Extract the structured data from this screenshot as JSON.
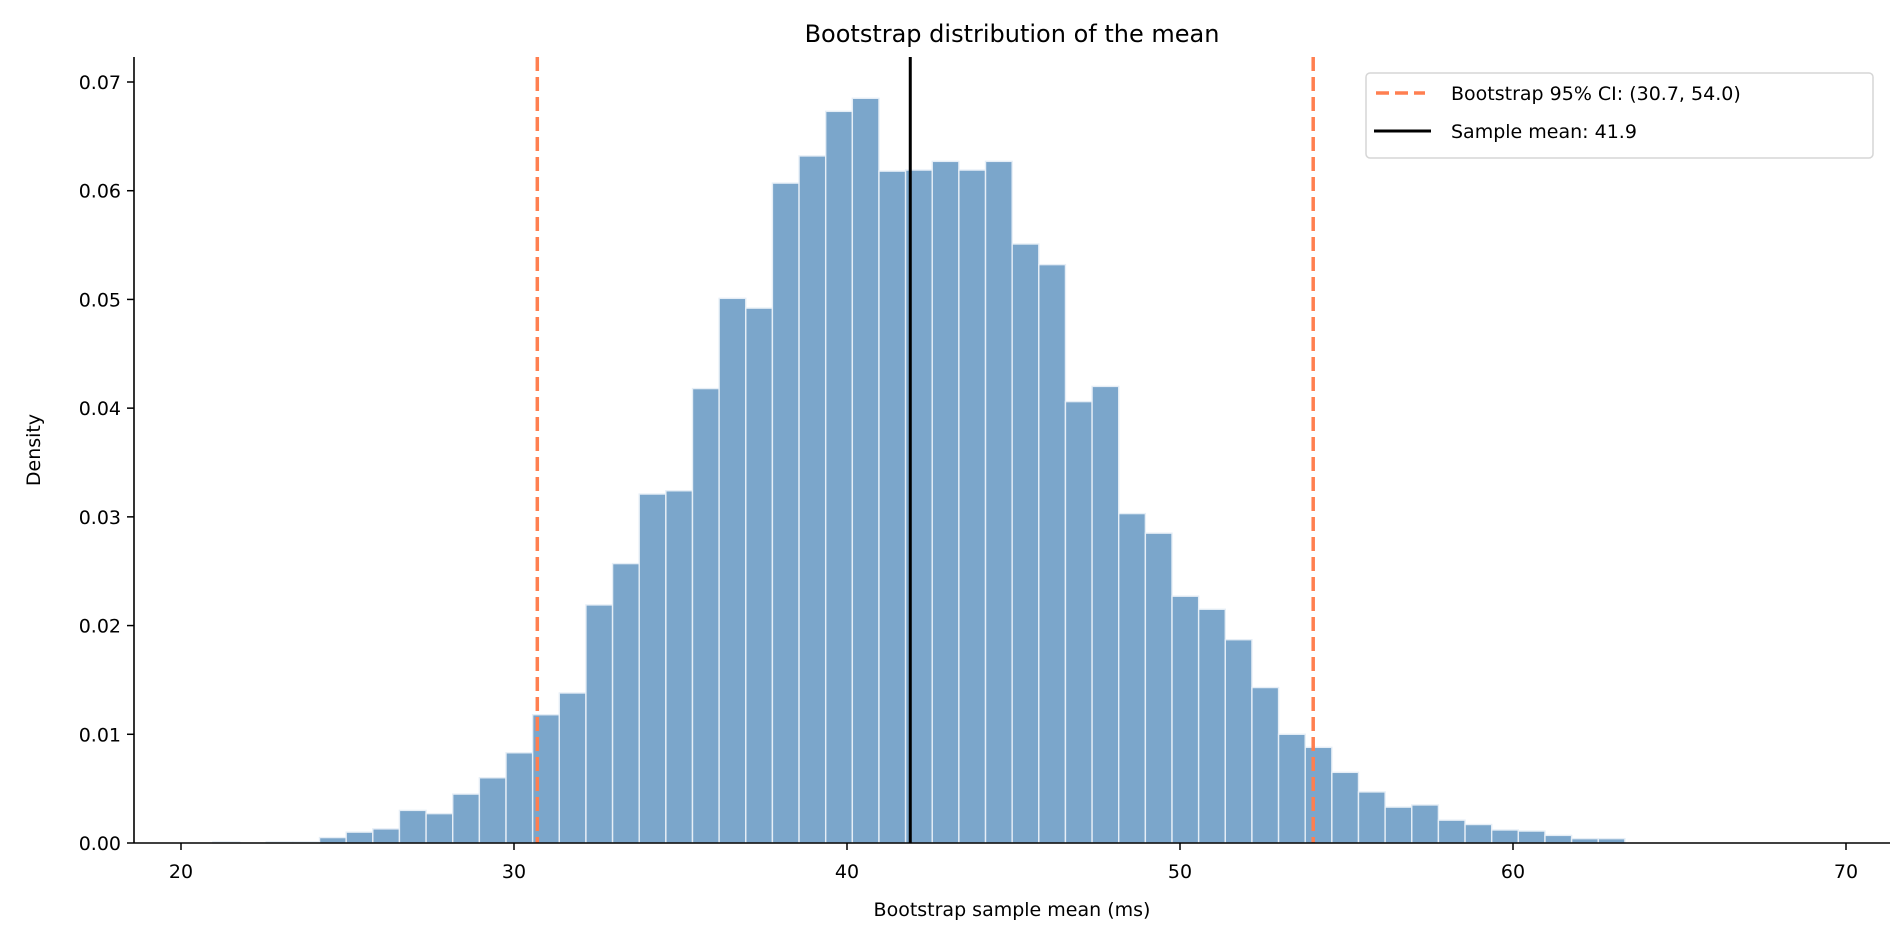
{
  "chart_data": {
    "type": "bar",
    "subtype": "histogram",
    "title": "Bootstrap distribution of the mean",
    "xlabel": "Bootstrap sample mean (ms)",
    "ylabel": "Density",
    "xlim": [
      18.5,
      71.3
    ],
    "ylim": [
      0,
      0.0722
    ],
    "xticks": [
      20,
      30,
      40,
      50,
      60,
      70
    ],
    "xtick_labels": [
      "20",
      "30",
      "40",
      "50",
      "60",
      "70"
    ],
    "yticks": [
      0,
      0.01,
      0.02,
      0.03,
      0.04,
      0.05,
      0.06,
      0.07
    ],
    "ytick_labels": [
      "0.00",
      "0.01",
      "0.02",
      "0.03",
      "0.04",
      "0.05",
      "0.06",
      "0.07"
    ],
    "grid": false,
    "bin_start": 20.96,
    "bin_width": 0.8,
    "values": [
      0.0001,
      0,
      0.0001,
      0.0001,
      0.0005,
      0.001,
      0.0013,
      0.003,
      0.0027,
      0.0045,
      0.006,
      0.0083,
      0.0118,
      0.0138,
      0.0219,
      0.0257,
      0.0321,
      0.0324,
      0.0418,
      0.0501,
      0.0492,
      0.0607,
      0.0632,
      0.0673,
      0.0685,
      0.0618,
      0.0619,
      0.0627,
      0.0619,
      0.0627,
      0.0551,
      0.0532,
      0.0406,
      0.042,
      0.0303,
      0.0285,
      0.0227,
      0.0215,
      0.0187,
      0.0143,
      0.01,
      0.0088,
      0.0065,
      0.0047,
      0.0033,
      0.0035,
      0.0021,
      0.0017,
      0.0012,
      0.0011,
      0.0007,
      0.0004,
      0.0004
    ],
    "bar_color": "#7ba6cb",
    "vlines": [
      {
        "x": 30.7,
        "style": "dashed",
        "color": "#ff7f50"
      },
      {
        "x": 54.0,
        "style": "dashed",
        "color": "#ff7f50"
      },
      {
        "x": 41.9,
        "style": "solid",
        "color": "#000000"
      }
    ],
    "legend": {
      "placement": "top-right",
      "entries": [
        {
          "label": "Bootstrap 95% CI: (30.7, 54.0)",
          "style": "dashed",
          "color": "#ff7f50"
        },
        {
          "label": "Sample mean: 41.9",
          "style": "solid",
          "color": "#000000"
        }
      ]
    }
  }
}
